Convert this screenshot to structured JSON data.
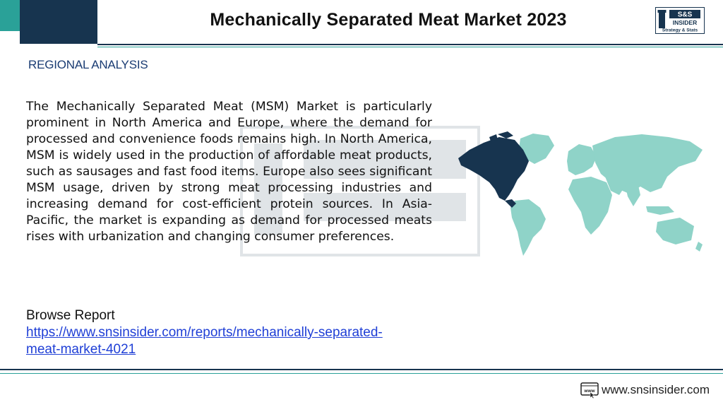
{
  "header": {
    "title": "Mechanically Separated Meat Market 2023",
    "logo": {
      "top_text": "S&S",
      "mid_text": "INSIDER",
      "bottom_text": "Strategy & Stats"
    }
  },
  "section": {
    "label": "REGIONAL ANALYSIS"
  },
  "body": {
    "paragraph": "The Mechanically Separated Meat (MSM) Market is particularly prominent in North America and Europe, where the demand for processed and convenience foods remains high. In North America, MSM is widely used in the production of affordable meat products, such as sausages and fast food items. Europe also sees significant MSM usage, driven by strong meat processing industries and increasing demand for cost-efficient protein sources. In Asia-Pacific, the market is expanding as demand for processed meats rises with urbanization and changing consumer preferences."
  },
  "browse": {
    "label": "Browse Report",
    "link_text": "https://www.snsinsider.com/reports/mechanically-separated-meat-market-4021"
  },
  "footer": {
    "site": "www.snsinsider.com",
    "icon_text": "www"
  },
  "colors": {
    "navy": "#17344f",
    "teal": "#2aa198",
    "map_land": "#8fd3c8",
    "map_highlight": "#17344f",
    "link": "#1f3fd6"
  }
}
